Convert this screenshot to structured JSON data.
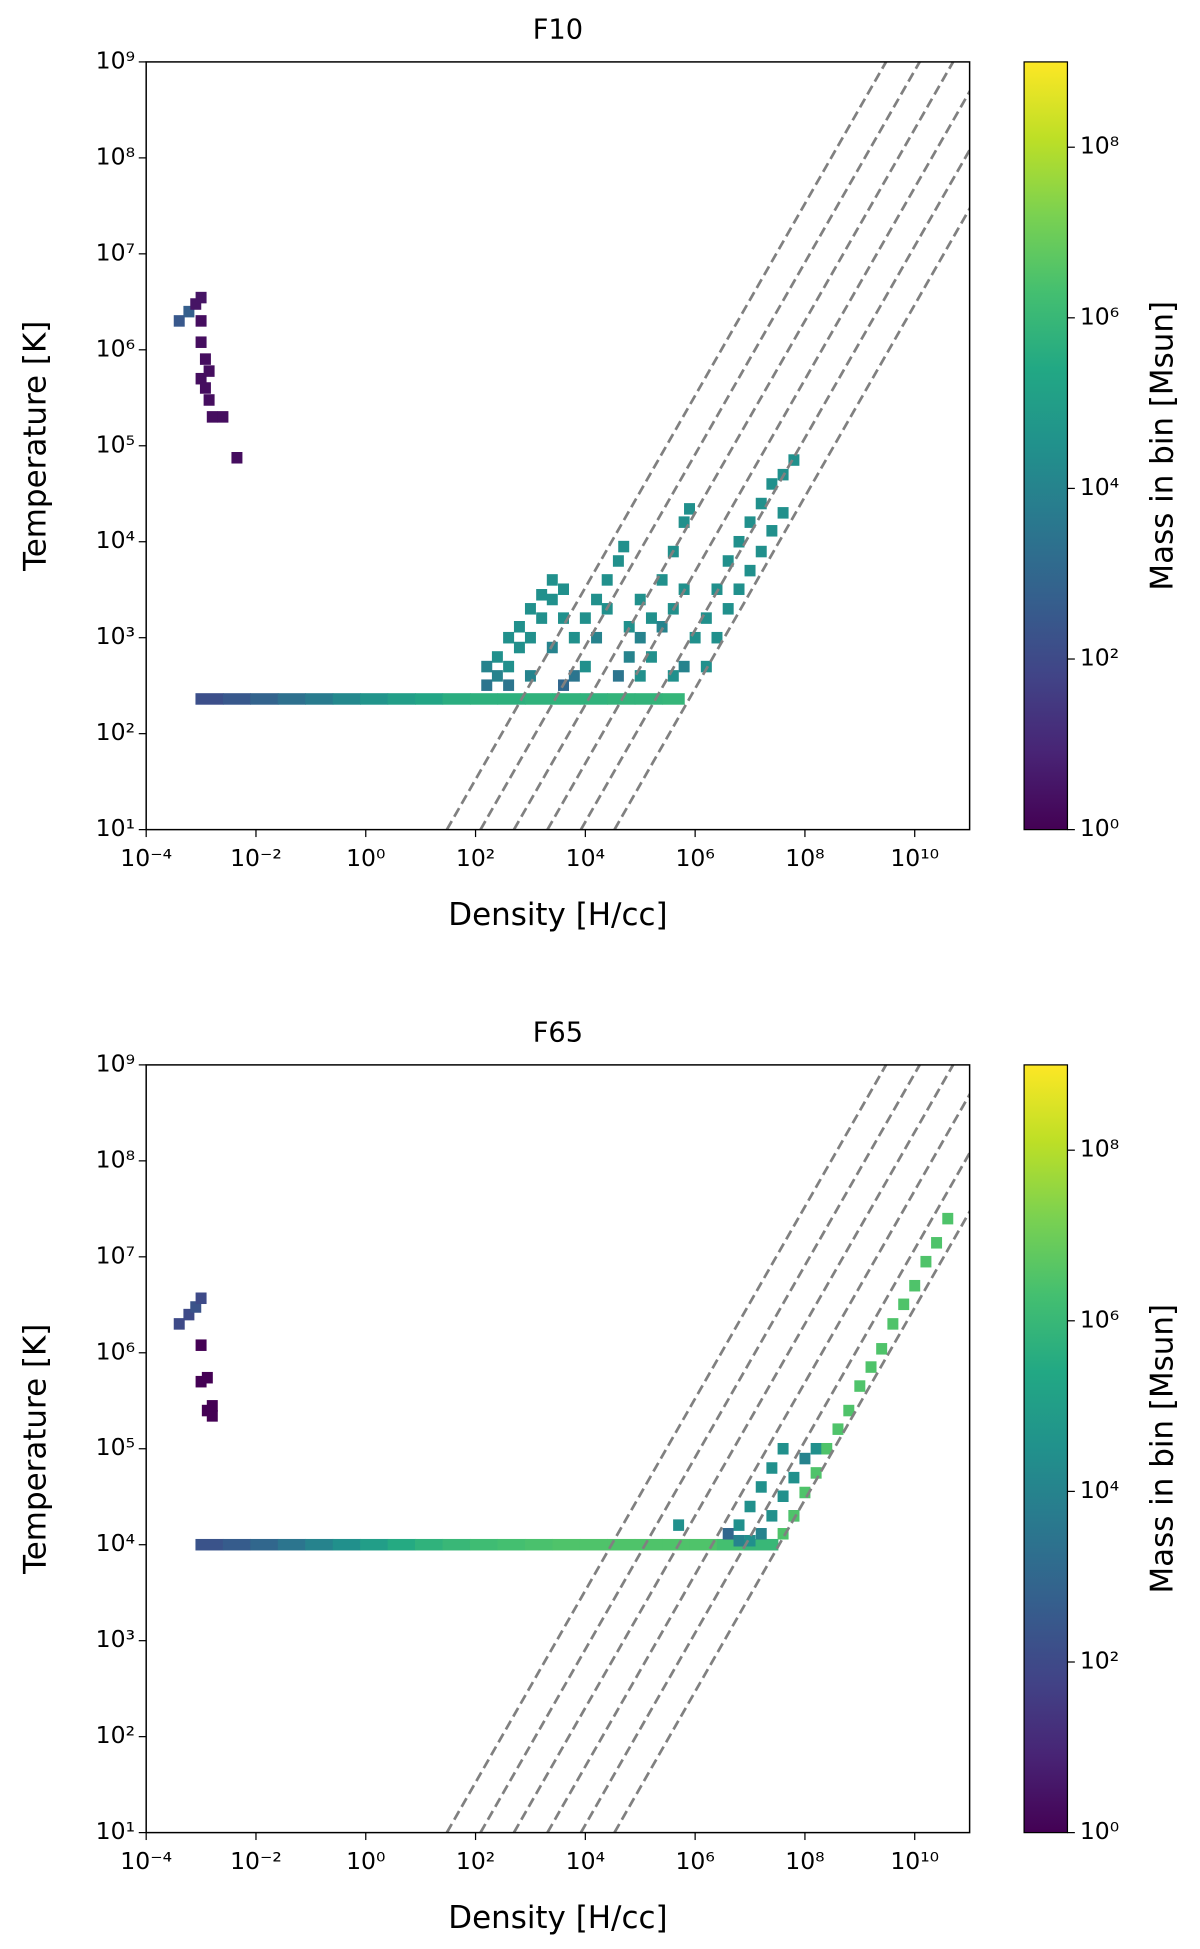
{
  "chart_data": [
    {
      "type": "hist2d",
      "title": "F10",
      "xlabel": "Density [H/cc]",
      "ylabel": "Temperature [K]",
      "xscale": "log",
      "yscale": "log",
      "xlim": [
        0.0001,
        100000000000.0
      ],
      "ylim": [
        10,
        1000000000.0
      ],
      "xticks": [
        {
          "value": 0.0001,
          "label": "10⁻⁴"
        },
        {
          "value": 0.01,
          "label": "10⁻²"
        },
        {
          "value": 1,
          "label": "10⁰"
        },
        {
          "value": 100.0,
          "label": "10²"
        },
        {
          "value": 10000.0,
          "label": "10⁴"
        },
        {
          "value": 1000000.0,
          "label": "10⁶"
        },
        {
          "value": 100000000.0,
          "label": "10⁸"
        },
        {
          "value": 10000000000.0,
          "label": "10¹⁰"
        }
      ],
      "yticks": [
        {
          "value": 10,
          "label": "10¹"
        },
        {
          "value": 100.0,
          "label": "10²"
        },
        {
          "value": 1000.0,
          "label": "10³"
        },
        {
          "value": 10000.0,
          "label": "10⁴"
        },
        {
          "value": 100000.0,
          "label": "10⁵"
        },
        {
          "value": 1000000.0,
          "label": "10⁶"
        },
        {
          "value": 10000000.0,
          "label": "10⁷"
        },
        {
          "value": 100000000.0,
          "label": "10⁸"
        },
        {
          "value": 1000000000.0,
          "label": "10⁹"
        }
      ],
      "colorbar": {
        "label": "Mass in bin [Msun]",
        "colormap": "viridis",
        "scale": "log",
        "lim": [
          1,
          1000000000.0
        ],
        "ticks": [
          {
            "value": 1,
            "label": "10⁰"
          },
          {
            "value": 100.0,
            "label": "10²"
          },
          {
            "value": 10000.0,
            "label": "10⁴"
          },
          {
            "value": 1000000.0,
            "label": "10⁶"
          },
          {
            "value": 100000000.0,
            "label": "10⁸"
          }
        ]
      },
      "reference_line_color": "#808080",
      "reference_lines": [
        {
          "x": [
            30,
            3000000000.0
          ],
          "y": [
            10,
            1000000000.0
          ]
        },
        {
          "x": [
            123,
            12300000000.0
          ],
          "y": [
            10,
            1000000000.0
          ]
        },
        {
          "x": [
            500,
            50000000000.0
          ],
          "y": [
            10,
            1000000000.0
          ]
        },
        {
          "x": [
            2040,
            204000000000.0
          ],
          "y": [
            10,
            1000000000.0
          ]
        },
        {
          "x": [
            8300,
            830000000000.0
          ],
          "y": [
            10,
            1000000000.0
          ]
        },
        {
          "x": [
            33900,
            3390000000000.0
          ],
          "y": [
            10,
            1000000000.0
          ]
        }
      ],
      "ridge": {
        "y": 230,
        "bins": [
          0.00079,
          0.0025,
          0.0079,
          0.025,
          0.079,
          0.25,
          0.79,
          2.5,
          7.9,
          25,
          79,
          251,
          794,
          2512,
          7943,
          25119,
          79433,
          251189,
          630000.0
        ],
        "values": [
          150,
          300,
          700,
          2000,
          5000,
          15000.0,
          40000.0,
          100000.0,
          200000.0,
          400000.0,
          500000.0,
          500000.0,
          600000.0,
          600000.0,
          600000.0,
          700000.0,
          700000.0,
          800000.0
        ]
      },
      "cells": [
        [
          160.0,
          320.0,
          3000.0
        ],
        [
          250.0,
          400.0,
          10000.0
        ],
        [
          400.0,
          500.0,
          30000.0
        ],
        [
          630.0,
          790.0,
          30000.0
        ],
        [
          1000.0,
          1000.0,
          30000.0
        ],
        [
          1600.0,
          1600.0,
          30000.0
        ],
        [
          2500.0,
          2500.0,
          30000.0
        ],
        [
          4000.0,
          3200.0,
          30000.0
        ],
        [
          250.0,
          630.0,
          30000.0
        ],
        [
          400.0,
          1000.0,
          30000.0
        ],
        [
          630.0,
          1300.0,
          30000.0
        ],
        [
          1000.0,
          2000.0,
          30000.0
        ],
        [
          1600.0,
          2800.0,
          30000.0
        ],
        [
          2500.0,
          4000.0,
          30000.0
        ],
        [
          160.0,
          500.0,
          10000.0
        ],
        [
          400.0,
          320.0,
          3000.0
        ],
        [
          1000.0,
          400.0,
          10000.0
        ],
        [
          2500.0,
          790.0,
          10000.0
        ],
        [
          4000.0,
          1600.0,
          30000.0
        ],
        [
          6300.0,
          400.0,
          3000.0
        ],
        [
          10000.0,
          500.0,
          30000.0
        ],
        [
          6300.0,
          1000.0,
          30000.0
        ],
        [
          10000.0,
          1600.0,
          30000.0
        ],
        [
          16000.0,
          2500.0,
          30000.0
        ],
        [
          25000.0,
          4000.0,
          30000.0
        ],
        [
          40000.0,
          6300.0,
          30000.0
        ],
        [
          50000.0,
          8900.0,
          30000.0
        ],
        [
          16000.0,
          1000.0,
          10000.0
        ],
        [
          25000.0,
          2000.0,
          30000.0
        ],
        [
          4000.0,
          320.0,
          1000.0
        ],
        [
          40000.0,
          400.0,
          3000.0
        ],
        [
          63000.0,
          630.0,
          10000.0
        ],
        [
          100000.0,
          1000.0,
          10000.0
        ],
        [
          160000.0,
          1600.0,
          30000.0
        ],
        [
          250000.0,
          4000.0,
          30000.0
        ],
        [
          400000.0,
          7900.0,
          30000.0
        ],
        [
          630000.0,
          16000.0,
          30000.0
        ],
        [
          790000.0,
          22000.0,
          30000.0
        ],
        [
          100000.0,
          400.0,
          30000.0
        ],
        [
          160000.0,
          630.0,
          30000.0
        ],
        [
          250000.0,
          1300.0,
          10000.0
        ],
        [
          400000.0,
          2000.0,
          30000.0
        ],
        [
          630000.0,
          3200.0,
          30000.0
        ],
        [
          630000.0,
          500.0,
          10000.0
        ],
        [
          100000.0,
          2500.0,
          30000.0
        ],
        [
          63000.0,
          1300.0,
          30000.0
        ],
        [
          400000.0,
          400.0,
          30000.0
        ],
        [
          1000000.0,
          1000.0,
          30000.0
        ],
        [
          1600000.0,
          1600.0,
          30000.0
        ],
        [
          2500000.0,
          3200.0,
          30000.0
        ],
        [
          4000000.0,
          6300.0,
          30000.0
        ],
        [
          6300000.0,
          10000.0,
          30000.0
        ],
        [
          10000000.0,
          16000.0,
          30000.0
        ],
        [
          16000000.0,
          25000.0,
          30000.0
        ],
        [
          25000000.0,
          40000.0,
          30000.0
        ],
        [
          40000000.0,
          50000.0,
          30000.0
        ],
        [
          63000000.0,
          71000.0,
          30000.0
        ],
        [
          2500000.0,
          1000.0,
          30000.0
        ],
        [
          4000000.0,
          2000.0,
          30000.0
        ],
        [
          6300000.0,
          3200.0,
          30000.0
        ],
        [
          10000000.0,
          5000.0,
          30000.0
        ],
        [
          16000000.0,
          7900.0,
          30000.0
        ],
        [
          25000000.0,
          13000.0,
          30000.0
        ],
        [
          40000000.0,
          20000.0,
          30000.0
        ],
        [
          1600000.0,
          500.0,
          30000.0
        ],
        [
          0.0004,
          2000000.0,
          300
        ],
        [
          0.0006,
          2500000.0,
          500
        ],
        [
          0.0008,
          3000000.0,
          3
        ],
        [
          0.001,
          3500000.0,
          3
        ],
        [
          0.001,
          2000000.0,
          2
        ],
        [
          0.001,
          1200000.0,
          2
        ],
        [
          0.0012,
          800000.0,
          2
        ],
        [
          0.001,
          500000.0,
          2
        ],
        [
          0.0014,
          600000.0,
          2
        ],
        [
          0.0014,
          300000.0,
          2
        ],
        [
          0.0016,
          200000.0,
          2
        ],
        [
          0.0012,
          400000.0,
          2
        ],
        [
          0.0025,
          200000.0,
          2
        ],
        [
          0.0045,
          75000.0,
          2
        ]
      ]
    },
    {
      "type": "hist2d",
      "title": "F65",
      "xlabel": "Density [H/cc]",
      "ylabel": "Temperature [K]",
      "xscale": "log",
      "yscale": "log",
      "xlim": [
        0.0001,
        100000000000.0
      ],
      "ylim": [
        10,
        1000000000.0
      ],
      "xticks": [
        {
          "value": 0.0001,
          "label": "10⁻⁴"
        },
        {
          "value": 0.01,
          "label": "10⁻²"
        },
        {
          "value": 1,
          "label": "10⁰"
        },
        {
          "value": 100.0,
          "label": "10²"
        },
        {
          "value": 10000.0,
          "label": "10⁴"
        },
        {
          "value": 1000000.0,
          "label": "10⁶"
        },
        {
          "value": 100000000.0,
          "label": "10⁸"
        },
        {
          "value": 10000000000.0,
          "label": "10¹⁰"
        }
      ],
      "yticks": [
        {
          "value": 10,
          "label": "10¹"
        },
        {
          "value": 100.0,
          "label": "10²"
        },
        {
          "value": 1000.0,
          "label": "10³"
        },
        {
          "value": 10000.0,
          "label": "10⁴"
        },
        {
          "value": 100000.0,
          "label": "10⁵"
        },
        {
          "value": 1000000.0,
          "label": "10⁶"
        },
        {
          "value": 10000000.0,
          "label": "10⁷"
        },
        {
          "value": 100000000.0,
          "label": "10⁸"
        },
        {
          "value": 1000000000.0,
          "label": "10⁹"
        }
      ],
      "colorbar": {
        "label": "Mass in bin [Msun]",
        "colormap": "viridis",
        "scale": "log",
        "lim": [
          1,
          1000000000.0
        ],
        "ticks": [
          {
            "value": 1,
            "label": "10⁰"
          },
          {
            "value": 100.0,
            "label": "10²"
          },
          {
            "value": 10000.0,
            "label": "10⁴"
          },
          {
            "value": 1000000.0,
            "label": "10⁶"
          },
          {
            "value": 100000000.0,
            "label": "10⁸"
          }
        ]
      },
      "reference_line_color": "#808080",
      "reference_lines": [
        {
          "x": [
            30,
            3000000000.0
          ],
          "y": [
            10,
            1000000000.0
          ]
        },
        {
          "x": [
            123,
            12300000000.0
          ],
          "y": [
            10,
            1000000000.0
          ]
        },
        {
          "x": [
            500,
            50000000000.0
          ],
          "y": [
            10,
            1000000000.0
          ]
        },
        {
          "x": [
            2040,
            204000000000.0
          ],
          "y": [
            10,
            1000000000.0
          ]
        },
        {
          "x": [
            8300,
            830000000000.0
          ],
          "y": [
            10,
            1000000000.0
          ]
        },
        {
          "x": [
            33900,
            3390000000000.0
          ],
          "y": [
            10,
            1000000000.0
          ]
        }
      ],
      "ridge": {
        "y": 10000.0,
        "bins": [
          0.00079,
          0.0025,
          0.0079,
          0.025,
          0.079,
          0.25,
          0.79,
          2.5,
          7.9,
          25,
          79,
          251,
          794,
          2512,
          7943,
          25119,
          79433,
          251189,
          794328,
          2500000.0,
          7900000.0,
          32000000.0
        ],
        "values": [
          200,
          400,
          1000,
          3000,
          10000.0,
          30000.0,
          100000.0,
          300000.0,
          600000.0,
          1000000.0,
          1500000.0,
          2000000.0,
          2500000.0,
          3000000.0,
          3000000.0,
          3000000.0,
          3000000.0,
          3000000.0,
          3000000.0,
          2000000.0,
          1000000.0
        ]
      },
      "cells": [
        [
          0.0004,
          2000000.0,
          100
        ],
        [
          0.0006,
          2500000.0,
          100
        ],
        [
          0.0008,
          3000000.0,
          200
        ],
        [
          0.001,
          3700000.0,
          100
        ],
        [
          0.001,
          1200000.0,
          1
        ],
        [
          0.001,
          500000.0,
          1
        ],
        [
          0.0013,
          550000.0,
          1
        ],
        [
          0.0013,
          250000.0,
          1
        ],
        [
          0.0016,
          220000.0,
          1
        ],
        [
          0.0016,
          280000.0,
          1
        ],
        [
          500000.0,
          16000.0,
          30000.0
        ],
        [
          4000000.0,
          13000.0,
          1000.0
        ],
        [
          6300000.0,
          16000.0,
          30000.0
        ],
        [
          10000000.0,
          25000.0,
          30000.0
        ],
        [
          16000000.0,
          40000.0,
          30000.0
        ],
        [
          25000000.0,
          63000.0,
          30000.0
        ],
        [
          40000000.0,
          100000.0,
          30000.0
        ],
        [
          25000000.0,
          20000.0,
          30000.0
        ],
        [
          16000000.0,
          13000.0,
          10000.0
        ],
        [
          10000000.0,
          11000.0,
          30000.0
        ],
        [
          6300000.0,
          11000.0,
          10000.0
        ],
        [
          40000000.0,
          32000.0,
          30000.0
        ],
        [
          63000000.0,
          50000.0,
          30000.0
        ],
        [
          100000000.0,
          79000.0,
          10000.0
        ],
        [
          160000000.0,
          100000.0,
          30000.0
        ],
        [
          63000000.0,
          20000.0,
          30000.0
        ],
        [
          40000000.0,
          13000.0,
          3000000.0
        ],
        [
          63000000.0,
          20000.0,
          3000000.0
        ],
        [
          100000000.0,
          35000.0,
          3000000.0
        ],
        [
          160000000.0,
          56000.0,
          3000000.0
        ],
        [
          250000000.0,
          100000.0,
          3000000.0
        ],
        [
          400000000.0,
          160000.0,
          3000000.0
        ],
        [
          630000000.0,
          250000.0,
          3000000.0
        ],
        [
          1000000000.0,
          450000.0,
          3000000.0
        ],
        [
          1600000000.0,
          710000.0,
          3000000.0
        ],
        [
          2500000000.0,
          1100000.0,
          3000000.0
        ],
        [
          4000000000.0,
          2000000.0,
          3000000.0
        ],
        [
          6300000000.0,
          3200000.0,
          3000000.0
        ],
        [
          10000000000.0,
          5000000.0,
          3000000.0
        ],
        [
          16000000000.0,
          8900000.0,
          3000000.0
        ],
        [
          25000000000.0,
          14000000.0,
          3000000.0
        ],
        [
          40000000000.0,
          25000000.0,
          3000000.0
        ]
      ]
    }
  ]
}
